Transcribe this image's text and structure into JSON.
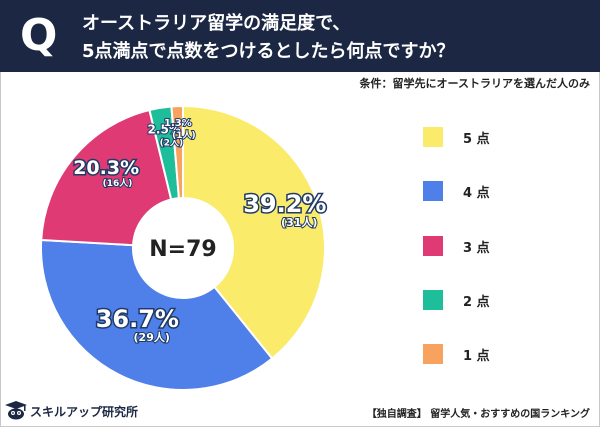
{
  "header": {
    "q_mark": "Q",
    "question_line1": "オーストラリア留学の満足度で、",
    "question_line2": "5点満点で点数をつけるとしたら何点ですか？",
    "condition": "条件：留学先にオーストラリアを選んだ人のみ"
  },
  "colors": {
    "header_bg": "#1b2743"
  },
  "chart_data": {
    "type": "pie",
    "donut": true,
    "center_label": "N=79",
    "total": 79,
    "slices": [
      {
        "label": "5点",
        "percent": 39.2,
        "percent_label": "39.2%",
        "count": 31,
        "count_label": "(31人)",
        "color": "#fbeb6b"
      },
      {
        "label": "4点",
        "percent": 36.7,
        "percent_label": "36.7%",
        "count": 29,
        "count_label": "(29人)",
        "color": "#4f7fe8"
      },
      {
        "label": "3点",
        "percent": 20.3,
        "percent_label": "20.3%",
        "count": 16,
        "count_label": "(16人)",
        "color": "#df3a73"
      },
      {
        "label": "2点",
        "percent": 2.5,
        "percent_label": "2.5%",
        "count": 2,
        "count_label": "(2人)",
        "color": "#1fbe9a"
      },
      {
        "label": "1点",
        "percent": 1.3,
        "percent_label": "1.3%",
        "count": 1,
        "count_label": "(1人)",
        "color": "#f7a25f"
      }
    ],
    "legend": [
      "5 点",
      "4 点",
      "3 点",
      "2 点",
      "1 点"
    ]
  },
  "footer": {
    "brand": "スキルアップ研究所",
    "note": "【独自調査】 留学人気・おすすめの国ランキング"
  }
}
